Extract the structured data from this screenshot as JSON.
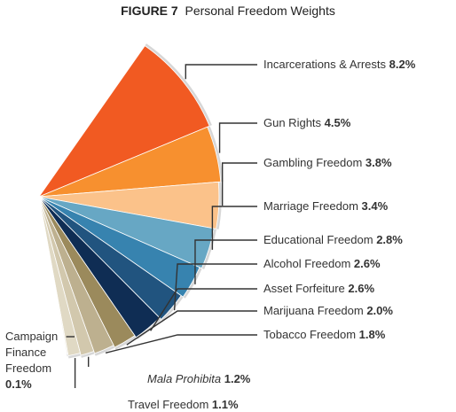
{
  "title": {
    "prefix": "FIGURE 7",
    "text": "Personal Freedom Weights"
  },
  "colors": {
    "slices": [
      "#f15a22",
      "#f7902f",
      "#fbc28a",
      "#67a7c4",
      "#3783af",
      "#21547f",
      "#0f2d54",
      "#9b8a5c",
      "#bdb08f",
      "#d2c8ad",
      "#e0d9c4",
      "#eae6d8"
    ],
    "edge": "#d7d7d7",
    "leader": "#333333"
  },
  "chart_data": {
    "type": "pie",
    "title": "FIGURE 7  Personal Freedom Weights",
    "slices": [
      {
        "name": "Incarcerations & Arrests",
        "value": 8.2,
        "value_label": "8.2%"
      },
      {
        "name": "Gun Rights",
        "value": 4.5,
        "value_label": "4.5%"
      },
      {
        "name": "Gambling Freedom",
        "value": 3.8,
        "value_label": "3.8%"
      },
      {
        "name": "Marriage Freedom",
        "value": 3.4,
        "value_label": "3.4%"
      },
      {
        "name": "Educational Freedom",
        "value": 2.8,
        "value_label": "2.8%"
      },
      {
        "name": "Alcohol Freedom",
        "value": 2.6,
        "value_label": "2.6%"
      },
      {
        "name": "Asset Forfeiture",
        "value": 2.6,
        "value_label": "2.6%"
      },
      {
        "name": "Marijuana Freedom",
        "value": 2.0,
        "value_label": "2.0%"
      },
      {
        "name": "Tobacco Freedom",
        "value": 1.8,
        "value_label": "1.8%"
      },
      {
        "name": "Mala Prohibita",
        "value": 1.2,
        "value_label": "1.2%"
      },
      {
        "name": "Travel Freedom",
        "value": 1.1,
        "value_label": "1.1%"
      },
      {
        "name": "Campaign Finance Freedom",
        "value": 0.1,
        "value_label": "0.1%"
      }
    ],
    "legend": "none"
  }
}
